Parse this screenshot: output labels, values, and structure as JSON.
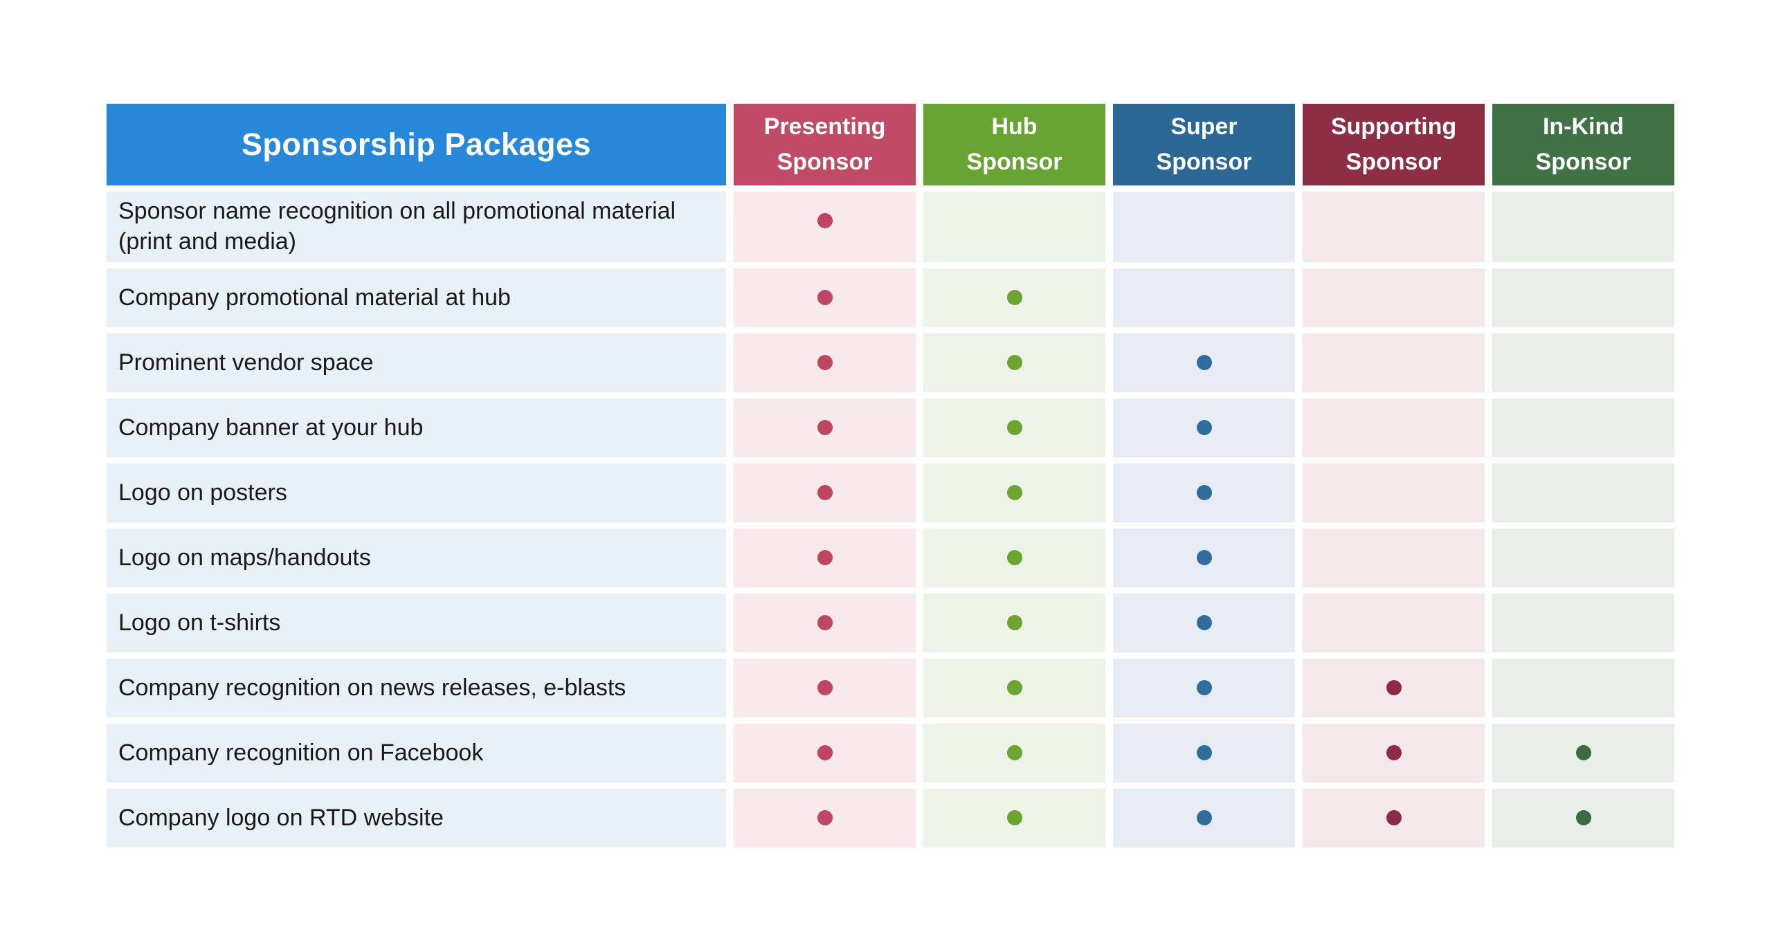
{
  "table": {
    "title": "Sponsorship Packages",
    "title_bg": "#2787d8",
    "row_label_bg": "#e8f1f8",
    "text_color": "#1a1a1a",
    "columns": [
      {
        "id": "presenting",
        "label": "Presenting\nSponsor",
        "header_bg": "#c14a66",
        "cell_bg": "#f8e9ec",
        "dot_color": "#bf4663"
      },
      {
        "id": "hub",
        "label": "Hub\nSponsor",
        "header_bg": "#68a433",
        "cell_bg": "#eef3e8",
        "dot_color": "#6ba52f"
      },
      {
        "id": "super",
        "label": "Super\nSponsor",
        "header_bg": "#2b6795",
        "cell_bg": "#e7ebf4",
        "dot_color": "#2e6d9e"
      },
      {
        "id": "supporting",
        "label": "Supporting\nSponsor",
        "header_bg": "#8d2e44",
        "cell_bg": "#f5e8eb",
        "dot_color": "#8c2b44"
      },
      {
        "id": "inkind",
        "label": "In-Kind\nSponsor",
        "header_bg": "#417245",
        "cell_bg": "#e9eee8",
        "dot_color": "#3d6b41"
      }
    ],
    "rows": [
      {
        "label": "Sponsor name recognition on all promotional material (print and media)",
        "included": [
          true,
          false,
          false,
          false,
          false
        ]
      },
      {
        "label": "Company promotional material at hub",
        "included": [
          true,
          true,
          false,
          false,
          false
        ]
      },
      {
        "label": "Prominent vendor space",
        "included": [
          true,
          true,
          true,
          false,
          false
        ]
      },
      {
        "label": "Company banner at your hub",
        "included": [
          true,
          true,
          true,
          false,
          false
        ]
      },
      {
        "label": "Logo on posters",
        "included": [
          true,
          true,
          true,
          false,
          false
        ]
      },
      {
        "label": "Logo on maps/handouts",
        "included": [
          true,
          true,
          true,
          false,
          false
        ]
      },
      {
        "label": "Logo on t-shirts",
        "included": [
          true,
          true,
          true,
          false,
          false
        ]
      },
      {
        "label": "Company recognition on news releases, e-blasts",
        "included": [
          true,
          true,
          true,
          true,
          false
        ]
      },
      {
        "label": "Company recognition on Facebook",
        "included": [
          true,
          true,
          true,
          true,
          true
        ]
      },
      {
        "label": "Company logo on RTD website",
        "included": [
          true,
          true,
          true,
          true,
          true
        ]
      }
    ]
  },
  "chart_data": {
    "type": "table",
    "title": "Sponsorship Packages",
    "columns": [
      "Presenting Sponsor",
      "Hub Sponsor",
      "Super Sponsor",
      "Supporting Sponsor",
      "In-Kind Sponsor"
    ],
    "rows": [
      "Sponsor name recognition on all promotional material (print and media)",
      "Company promotional material at hub",
      "Prominent vendor space",
      "Company banner at your hub",
      "Logo on posters",
      "Logo on maps/handouts",
      "Logo on t-shirts",
      "Company recognition on news releases, e-blasts",
      "Company recognition on Facebook",
      "Company logo on RTD website"
    ],
    "matrix": [
      [
        1,
        0,
        0,
        0,
        0
      ],
      [
        1,
        1,
        0,
        0,
        0
      ],
      [
        1,
        1,
        1,
        0,
        0
      ],
      [
        1,
        1,
        1,
        0,
        0
      ],
      [
        1,
        1,
        1,
        0,
        0
      ],
      [
        1,
        1,
        1,
        0,
        0
      ],
      [
        1,
        1,
        1,
        0,
        0
      ],
      [
        1,
        1,
        1,
        1,
        0
      ],
      [
        1,
        1,
        1,
        1,
        1
      ],
      [
        1,
        1,
        1,
        1,
        1
      ]
    ],
    "cell_marker": "dot",
    "marker_meaning": "benefit included in package",
    "column_colors": [
      "#c14a66",
      "#68a433",
      "#2b6795",
      "#8d2e44",
      "#417245"
    ],
    "header_color": "#2787d8"
  }
}
